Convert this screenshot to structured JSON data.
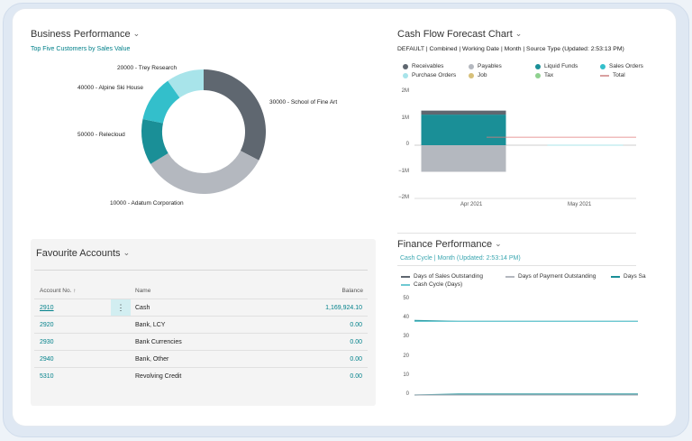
{
  "business": {
    "title": "Business Performance",
    "subtitle": "Top Five Customers by Sales Value",
    "slices": [
      {
        "label": "30000 - School of Fine Art",
        "value": 30,
        "color": "#5f6770"
      },
      {
        "label": "10000 - Adatum Corporation",
        "value": 31,
        "color": "#b4b8bf"
      },
      {
        "label": "50000 - Relecloud",
        "value": 11,
        "color": "#1a8f97"
      },
      {
        "label": "40000 - Alpine Ski House",
        "value": 11,
        "color": "#33bfcb"
      },
      {
        "label": "20000 - Trey Research",
        "value": 9,
        "color": "#a8e4ea"
      }
    ]
  },
  "cashflow": {
    "title": "Cash Flow Forecast Chart",
    "subtitle": "DEFAULT | Combined | Working Date | Month | Source Type (Updated:  2:53:13 PM)",
    "legend": [
      {
        "label": "Receivables",
        "color": "#5f6770",
        "kind": "dot"
      },
      {
        "label": "Payables",
        "color": "#b4b8bf",
        "kind": "dot"
      },
      {
        "label": "Liquid Funds",
        "color": "#1a8f97",
        "kind": "dot"
      },
      {
        "label": "Sales Orders",
        "color": "#33bfcb",
        "kind": "dot"
      },
      {
        "label": "Purchase Orders",
        "color": "#a8e4ea",
        "kind": "dot"
      },
      {
        "label": "Job",
        "color": "#d7c07a",
        "kind": "dot"
      },
      {
        "label": "Tax",
        "color": "#8fd18f",
        "kind": "dot"
      },
      {
        "label": "Total",
        "color": "#d9a0a0",
        "kind": "dash"
      }
    ],
    "chart_data": {
      "type": "bar",
      "categories": [
        "Apr 2021",
        "May 2021"
      ],
      "y_ticks": [
        "2M",
        "1M",
        "0",
        "−1M",
        "−2M"
      ],
      "ylim": [
        -2000000,
        2000000
      ],
      "series": [
        {
          "name": "Liquid Funds",
          "values": [
            1150000,
            0
          ]
        },
        {
          "name": "Receivables",
          "values": [
            150000,
            0
          ]
        },
        {
          "name": "Payables",
          "values": [
            -1000000,
            0
          ]
        },
        {
          "name": "Purchase Orders",
          "values": [
            0,
            10000
          ]
        },
        {
          "name": "Total",
          "values": [
            300000,
            300000
          ]
        }
      ]
    }
  },
  "favourites": {
    "title": "Favourite Accounts",
    "columns": {
      "account": "Account No. ↑",
      "name": "Name",
      "balance": "Balance"
    },
    "menu_icon": "⋮",
    "rows": [
      {
        "no": "2910",
        "name": "Cash",
        "balance": "1,169,924.10"
      },
      {
        "no": "2920",
        "name": "Bank, LCY",
        "balance": "0.00"
      },
      {
        "no": "2930",
        "name": "Bank Currencies",
        "balance": "0.00"
      },
      {
        "no": "2940",
        "name": "Bank, Other",
        "balance": "0.00"
      },
      {
        "no": "5310",
        "name": "Revolving Credit",
        "balance": "0.00"
      }
    ]
  },
  "finance": {
    "title": "Finance Performance",
    "subtitle": "Cash Cycle | Month (Updated: 2:53:14 PM)",
    "legend": [
      {
        "label": "Days of Sales Outstanding",
        "color": "#5f6770"
      },
      {
        "label": "Days of Payment Outstanding",
        "color": "#b4b8bf"
      },
      {
        "label": "Days Sa",
        "color": "#1a8f97"
      },
      {
        "label": "Cash Cycle (Days)",
        "color": "#6fc9d2"
      }
    ],
    "chart_data": {
      "type": "line",
      "y_ticks": [
        "50",
        "40",
        "30",
        "20",
        "10",
        "0"
      ],
      "ylim": [
        0,
        50
      ],
      "series": [
        {
          "name": "Days Sales",
          "values": [
            39,
            38.5,
            38.5,
            38.5,
            38.5,
            38.5
          ]
        },
        {
          "name": "Cash Cycle (Days)",
          "values": [
            38.5,
            38.5,
            38.5,
            38.5,
            38.5,
            38.5
          ]
        },
        {
          "name": "Days of Sales Outstanding",
          "values": [
            0,
            0.5,
            0.5,
            0.5,
            0.5,
            0.5
          ]
        },
        {
          "name": "Days of Payment Outstanding",
          "values": [
            0,
            0,
            0,
            0,
            0,
            0
          ]
        }
      ]
    }
  }
}
